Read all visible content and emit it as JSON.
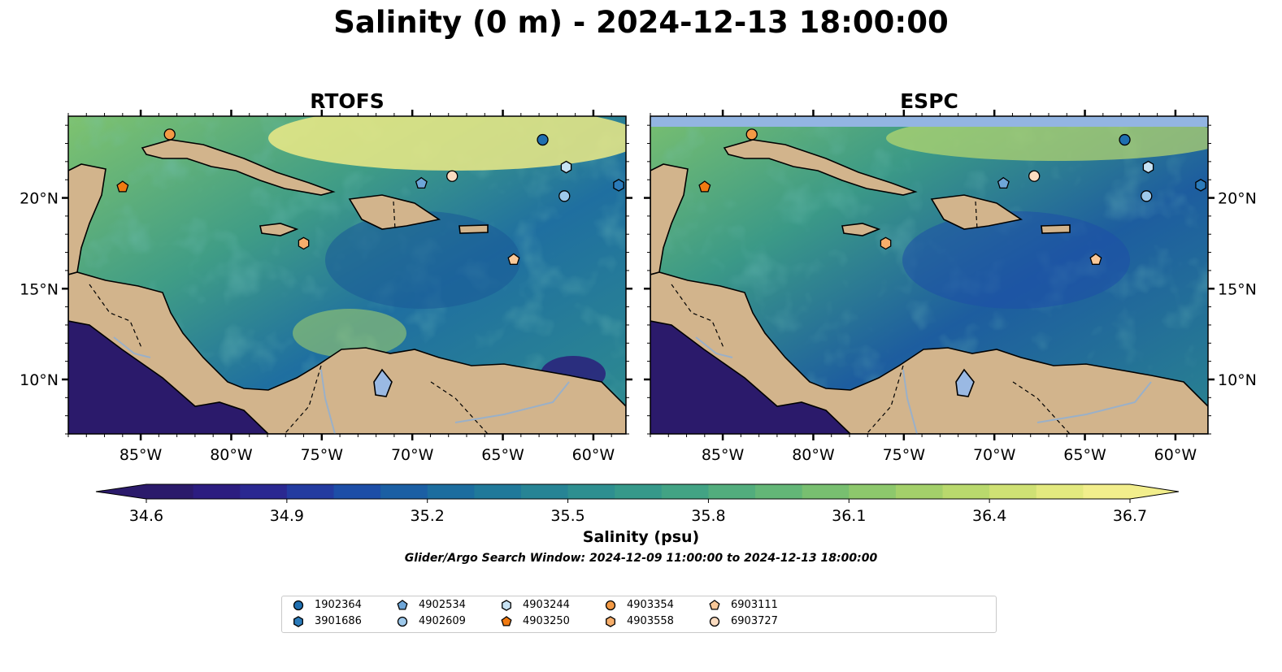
{
  "title": "Salinity (0 m) - 2024-12-13 18:00:00",
  "panels": [
    {
      "title": "RTOFS",
      "ytick_side": "left"
    },
    {
      "title": "ESPC",
      "ytick_side": "right"
    }
  ],
  "chart_data": {
    "type": "heatmap",
    "title": "Salinity (0 m) - 2024-12-13 18:00:00",
    "subplots": [
      "RTOFS",
      "ESPC"
    ],
    "xlim": [
      -89,
      -58.2
    ],
    "ylim": [
      7,
      24.5
    ],
    "xticks": [
      -85,
      -80,
      -75,
      -70,
      -65,
      -60
    ],
    "xtick_labels": [
      "85°W",
      "80°W",
      "75°W",
      "70°W",
      "65°W",
      "60°W"
    ],
    "yticks": [
      10,
      15,
      20
    ],
    "ytick_labels": [
      "10°N",
      "15°N",
      "20°N"
    ],
    "colorbar": {
      "label": "Salinity (psu)",
      "min": 34.6,
      "max": 36.7,
      "ticks": [
        34.6,
        34.9,
        35.2,
        35.5,
        35.8,
        36.1,
        36.4,
        36.7
      ],
      "tick_labels": [
        "34.6",
        "34.9",
        "35.2",
        "35.5",
        "35.8",
        "36.1",
        "36.4",
        "36.7"
      ],
      "extend": "both",
      "colors": [
        "#2b1a6b",
        "#2c1d80",
        "#2a2891",
        "#233ba0",
        "#1d4ea7",
        "#1b5fa4",
        "#1c6d9f",
        "#20799a",
        "#278495",
        "#2e8f90",
        "#36998a",
        "#42a384",
        "#52ad7d",
        "#63b677",
        "#78bf70",
        "#8dc86c",
        "#a3d06a",
        "#b9d96d",
        "#cfe174",
        "#e3e97f",
        "#f2ee8c"
      ]
    },
    "land_color": "#d2b48c",
    "search_window": "Glider/Argo Search Window: 2024-12-09 11:00:00 to 2024-12-13 18:00:00",
    "series": [
      {
        "name": "1902364",
        "marker": "circle",
        "color": "#1f6fb0",
        "lon": -62.8,
        "lat": 23.2
      },
      {
        "name": "3901686",
        "marker": "hexagon",
        "color": "#2b7bba",
        "lon": -58.6,
        "lat": 20.7
      },
      {
        "name": "4902534",
        "marker": "pentagon",
        "color": "#6ea6d8",
        "lon": -69.5,
        "lat": 20.8
      },
      {
        "name": "4902609",
        "marker": "circle",
        "color": "#9ec9eb",
        "lon": -61.6,
        "lat": 20.1
      },
      {
        "name": "4903244",
        "marker": "hexagon",
        "color": "#c7e2f3",
        "lon": -61.5,
        "lat": 21.7
      },
      {
        "name": "4903250",
        "marker": "pentagon",
        "color": "#f07a11",
        "lon": -86.0,
        "lat": 20.6
      },
      {
        "name": "4903354",
        "marker": "circle",
        "color": "#f39a45",
        "lon": -83.4,
        "lat": 23.5
      },
      {
        "name": "4903558",
        "marker": "hexagon",
        "color": "#f6ae6b",
        "lon": -76.0,
        "lat": 17.5
      },
      {
        "name": "6903111",
        "marker": "pentagon",
        "color": "#f8c898",
        "lon": -64.4,
        "lat": 16.6
      },
      {
        "name": "6903727",
        "marker": "circle",
        "color": "#fbdcc0",
        "lon": -67.8,
        "lat": 21.2
      }
    ]
  }
}
